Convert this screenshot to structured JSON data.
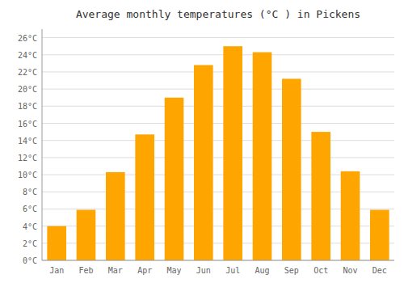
{
  "chart_data": {
    "type": "bar",
    "title": "Average monthly temperatures (°C ) in Pickens",
    "categories": [
      "Jan",
      "Feb",
      "Mar",
      "Apr",
      "May",
      "Jun",
      "Jul",
      "Aug",
      "Sep",
      "Oct",
      "Nov",
      "Dec"
    ],
    "values": [
      4.0,
      5.9,
      10.3,
      14.7,
      19.0,
      22.8,
      25.0,
      24.3,
      21.2,
      15.0,
      10.4,
      5.9
    ],
    "color": "#FFA500",
    "ylim": [
      0,
      27
    ],
    "yticks": [
      {
        "value": 0,
        "label": "0°C"
      },
      {
        "value": 2,
        "label": "2°C"
      },
      {
        "value": 4,
        "label": "4°C"
      },
      {
        "value": 6,
        "label": "6°C"
      },
      {
        "value": 8,
        "label": "8°C"
      },
      {
        "value": 10,
        "label": "10°C"
      },
      {
        "value": 12,
        "label": "12°C"
      },
      {
        "value": 14,
        "label": "14°C"
      },
      {
        "value": 16,
        "label": "16°C"
      },
      {
        "value": 18,
        "label": "18°C"
      },
      {
        "value": 20,
        "label": "20°C"
      },
      {
        "value": 22,
        "label": "22°C"
      },
      {
        "value": 24,
        "label": "24°C"
      },
      {
        "value": 26,
        "label": "26°C"
      }
    ],
    "grid": true
  }
}
